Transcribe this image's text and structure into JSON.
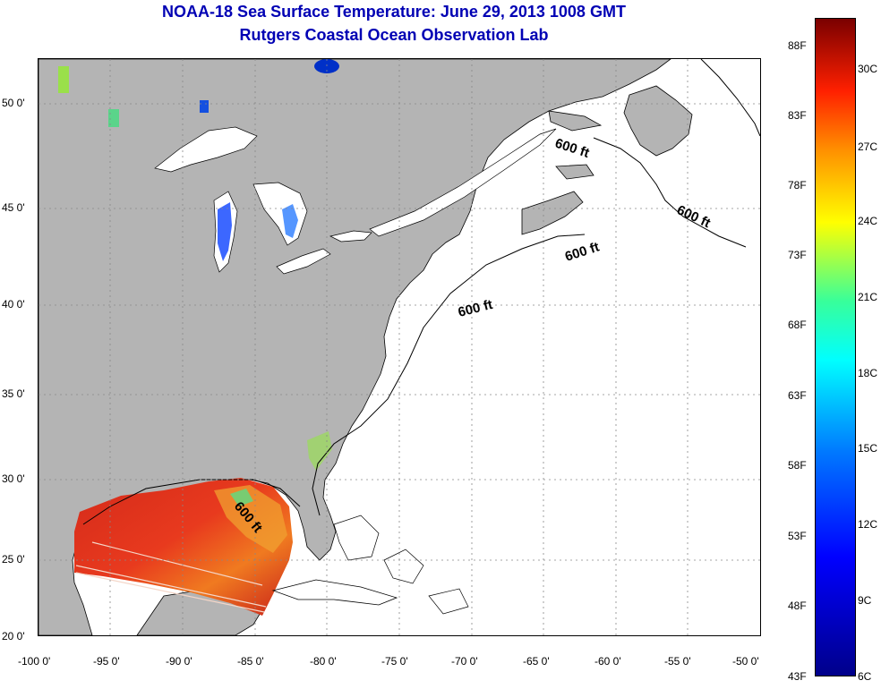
{
  "title": "NOAA-18 Sea Surface Temperature:  June 29, 2013 1008 GMT",
  "subtitle": "Rutgers Coastal Ocean Observation Lab",
  "map": {
    "lon_range": [
      -100,
      -50
    ],
    "lat_range": [
      20,
      52.5
    ],
    "x_ticks": [
      "-100 0'",
      "-95 0'",
      "-90 0'",
      "-85 0'",
      "-80 0'",
      "-75 0'",
      "-70 0'",
      "-65 0'",
      "-60 0'",
      "-55 0'",
      "-50 0'"
    ],
    "y_ticks": [
      "50 0'",
      "45 0'",
      "40 0'",
      "35 0'",
      "30 0'",
      "25 0'",
      "20 0'"
    ],
    "grid": true,
    "land_color": "#b4b4b4",
    "ocean_color": "#ffffff",
    "contour_labels": [
      "600 ft",
      "600 ft",
      "600 ft",
      "600 ft",
      "600 ft"
    ]
  },
  "colorbar": {
    "fahrenheit": [
      "88F",
      "83F",
      "78F",
      "73F",
      "68F",
      "63F",
      "58F",
      "53F",
      "48F",
      "43F"
    ],
    "celsius": [
      "30C",
      "27C",
      "24C",
      "21C",
      "18C",
      "15C",
      "12C",
      "9C",
      "6C"
    ],
    "range_c": [
      6,
      31.5
    ],
    "colors": [
      "#00008a",
      "#0000ff",
      "#0078ff",
      "#00ffff",
      "#38ff9a",
      "#ffff00",
      "#ff9000",
      "#ff2000",
      "#7a0000"
    ]
  }
}
